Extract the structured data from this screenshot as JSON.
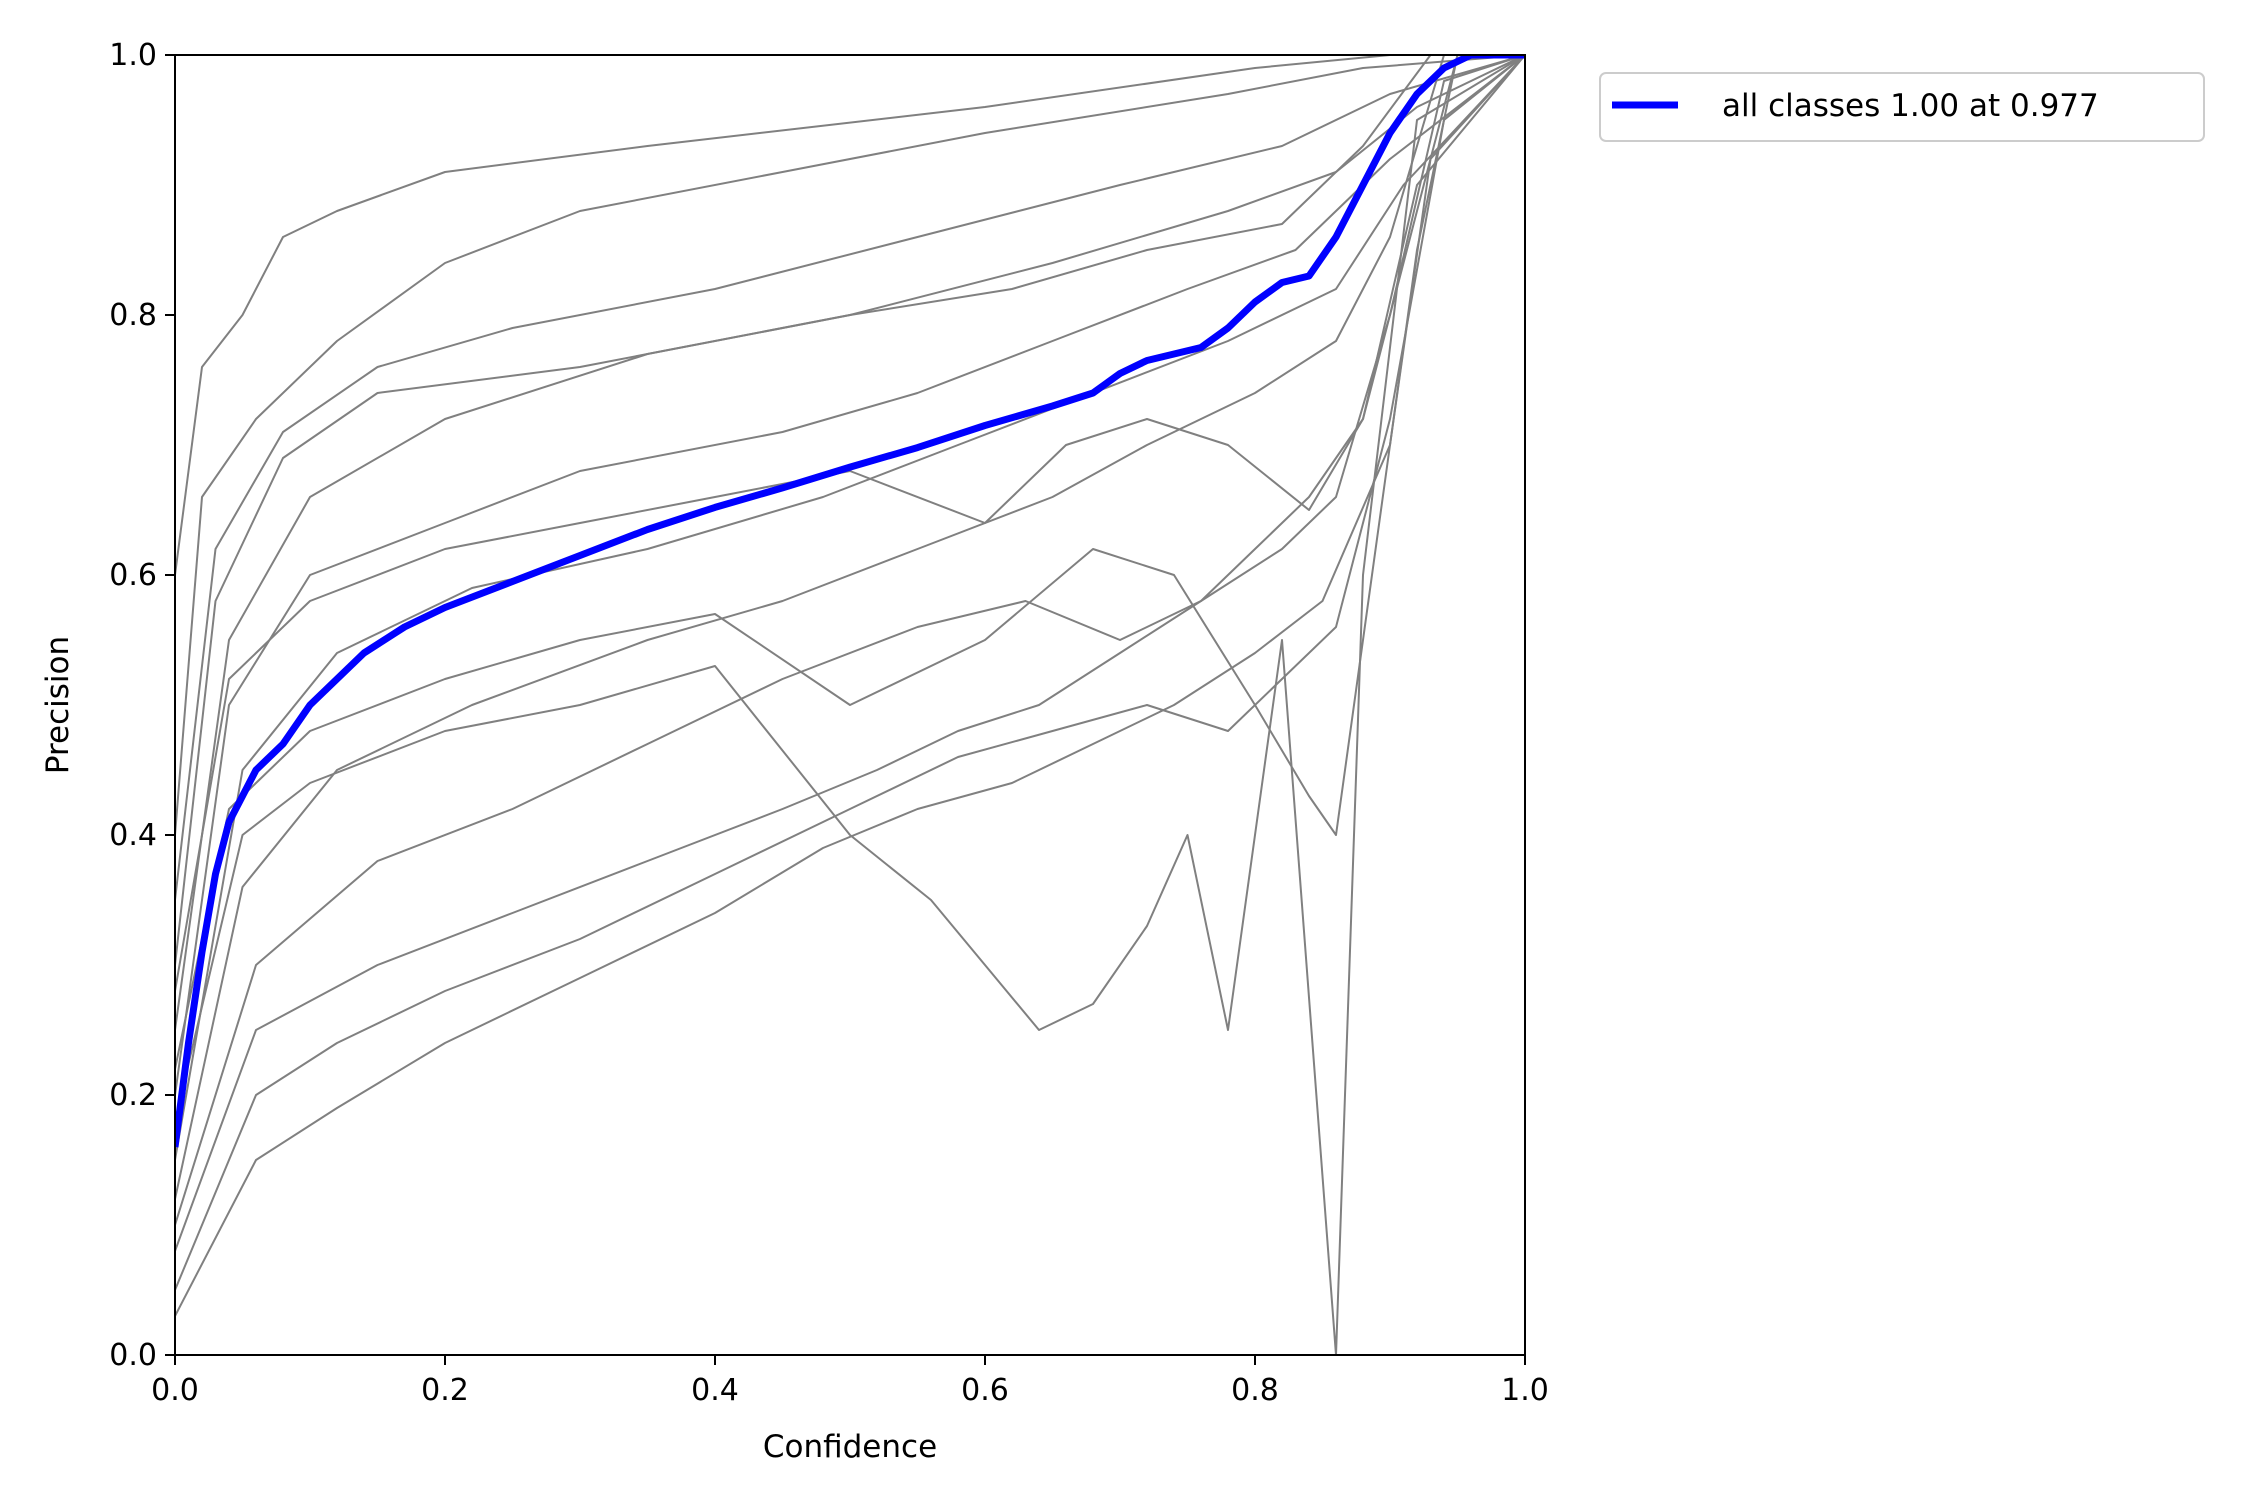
{
  "chart_data": {
    "type": "line",
    "title": "",
    "xlabel": "Confidence",
    "ylabel": "Precision",
    "xlim": [
      0.0,
      1.0
    ],
    "ylim": [
      0.0,
      1.0
    ],
    "xticks": [
      "0.0",
      "0.2",
      "0.4",
      "0.6",
      "0.8",
      "1.0"
    ],
    "yticks": [
      "0.0",
      "0.2",
      "0.4",
      "0.6",
      "0.8",
      "1.0"
    ],
    "grid": false,
    "legend_position": "outside-top-right",
    "colors": {
      "class_curves": "#808080",
      "all_classes": "#0000ff"
    },
    "series": [
      {
        "name": "all classes 1.00 at 0.977",
        "highlight": true,
        "points": [
          [
            0.0,
            0.16
          ],
          [
            0.01,
            0.24
          ],
          [
            0.02,
            0.31
          ],
          [
            0.03,
            0.37
          ],
          [
            0.04,
            0.41
          ],
          [
            0.05,
            0.43
          ],
          [
            0.06,
            0.45
          ],
          [
            0.08,
            0.47
          ],
          [
            0.1,
            0.5
          ],
          [
            0.12,
            0.52
          ],
          [
            0.14,
            0.54
          ],
          [
            0.17,
            0.56
          ],
          [
            0.2,
            0.575
          ],
          [
            0.25,
            0.595
          ],
          [
            0.3,
            0.615
          ],
          [
            0.35,
            0.635
          ],
          [
            0.4,
            0.652
          ],
          [
            0.45,
            0.667
          ],
          [
            0.5,
            0.683
          ],
          [
            0.55,
            0.698
          ],
          [
            0.6,
            0.715
          ],
          [
            0.65,
            0.73
          ],
          [
            0.68,
            0.74
          ],
          [
            0.7,
            0.755
          ],
          [
            0.72,
            0.765
          ],
          [
            0.74,
            0.77
          ],
          [
            0.76,
            0.775
          ],
          [
            0.78,
            0.79
          ],
          [
            0.8,
            0.81
          ],
          [
            0.82,
            0.825
          ],
          [
            0.84,
            0.83
          ],
          [
            0.86,
            0.86
          ],
          [
            0.88,
            0.9
          ],
          [
            0.9,
            0.94
          ],
          [
            0.92,
            0.97
          ],
          [
            0.94,
            0.99
          ],
          [
            0.96,
            1.0
          ],
          [
            1.0,
            1.0
          ]
        ]
      },
      {
        "highlight": false,
        "points": [
          [
            0.0,
            0.6
          ],
          [
            0.02,
            0.76
          ],
          [
            0.05,
            0.8
          ],
          [
            0.08,
            0.86
          ],
          [
            0.12,
            0.88
          ],
          [
            0.2,
            0.91
          ],
          [
            0.35,
            0.93
          ],
          [
            0.6,
            0.96
          ],
          [
            0.8,
            0.99
          ],
          [
            0.9,
            1.0
          ],
          [
            1.0,
            1.0
          ]
        ]
      },
      {
        "highlight": false,
        "points": [
          [
            0.0,
            0.4
          ],
          [
            0.02,
            0.66
          ],
          [
            0.06,
            0.72
          ],
          [
            0.12,
            0.78
          ],
          [
            0.2,
            0.84
          ],
          [
            0.3,
            0.88
          ],
          [
            0.45,
            0.91
          ],
          [
            0.6,
            0.94
          ],
          [
            0.78,
            0.97
          ],
          [
            0.88,
            0.99
          ],
          [
            1.0,
            1.0
          ]
        ]
      },
      {
        "highlight": false,
        "points": [
          [
            0.0,
            0.35
          ],
          [
            0.03,
            0.62
          ],
          [
            0.08,
            0.71
          ],
          [
            0.15,
            0.76
          ],
          [
            0.25,
            0.79
          ],
          [
            0.4,
            0.82
          ],
          [
            0.55,
            0.86
          ],
          [
            0.7,
            0.9
          ],
          [
            0.82,
            0.93
          ],
          [
            0.9,
            0.97
          ],
          [
            1.0,
            1.0
          ]
        ]
      },
      {
        "highlight": false,
        "points": [
          [
            0.0,
            0.3
          ],
          [
            0.03,
            0.58
          ],
          [
            0.08,
            0.69
          ],
          [
            0.15,
            0.74
          ],
          [
            0.3,
            0.76
          ],
          [
            0.5,
            0.8
          ],
          [
            0.65,
            0.84
          ],
          [
            0.78,
            0.88
          ],
          [
            0.86,
            0.91
          ],
          [
            0.92,
            0.96
          ],
          [
            1.0,
            1.0
          ]
        ]
      },
      {
        "highlight": false,
        "points": [
          [
            0.0,
            0.25
          ],
          [
            0.04,
            0.55
          ],
          [
            0.1,
            0.66
          ],
          [
            0.2,
            0.72
          ],
          [
            0.35,
            0.77
          ],
          [
            0.5,
            0.8
          ],
          [
            0.62,
            0.82
          ],
          [
            0.72,
            0.85
          ],
          [
            0.82,
            0.87
          ],
          [
            0.88,
            0.93
          ],
          [
            0.93,
            1.0
          ],
          [
            1.0,
            1.0
          ]
        ]
      },
      {
        "highlight": false,
        "points": [
          [
            0.0,
            0.2
          ],
          [
            0.04,
            0.5
          ],
          [
            0.1,
            0.6
          ],
          [
            0.2,
            0.64
          ],
          [
            0.3,
            0.68
          ],
          [
            0.45,
            0.71
          ],
          [
            0.55,
            0.74
          ],
          [
            0.65,
            0.78
          ],
          [
            0.75,
            0.82
          ],
          [
            0.83,
            0.85
          ],
          [
            0.9,
            0.92
          ],
          [
            1.0,
            1.0
          ]
        ]
      },
      {
        "highlight": false,
        "points": [
          [
            0.0,
            0.15
          ],
          [
            0.05,
            0.45
          ],
          [
            0.12,
            0.54
          ],
          [
            0.22,
            0.59
          ],
          [
            0.35,
            0.62
          ],
          [
            0.48,
            0.66
          ],
          [
            0.58,
            0.7
          ],
          [
            0.68,
            0.74
          ],
          [
            0.78,
            0.78
          ],
          [
            0.86,
            0.82
          ],
          [
            0.91,
            0.9
          ],
          [
            1.0,
            1.0
          ]
        ]
      },
      {
        "highlight": false,
        "points": [
          [
            0.0,
            0.12
          ],
          [
            0.05,
            0.36
          ],
          [
            0.12,
            0.45
          ],
          [
            0.22,
            0.5
          ],
          [
            0.35,
            0.55
          ],
          [
            0.45,
            0.58
          ],
          [
            0.55,
            0.62
          ],
          [
            0.65,
            0.66
          ],
          [
            0.72,
            0.7
          ],
          [
            0.8,
            0.74
          ],
          [
            0.86,
            0.78
          ],
          [
            0.9,
            0.86
          ],
          [
            0.94,
            1.0
          ],
          [
            1.0,
            1.0
          ]
        ]
      },
      {
        "highlight": false,
        "points": [
          [
            0.0,
            0.1
          ],
          [
            0.06,
            0.3
          ],
          [
            0.15,
            0.38
          ],
          [
            0.25,
            0.42
          ],
          [
            0.35,
            0.47
          ],
          [
            0.45,
            0.52
          ],
          [
            0.55,
            0.56
          ],
          [
            0.63,
            0.58
          ],
          [
            0.7,
            0.55
          ],
          [
            0.76,
            0.58
          ],
          [
            0.8,
            0.62
          ],
          [
            0.84,
            0.66
          ],
          [
            0.88,
            0.72
          ],
          [
            0.92,
            0.88
          ],
          [
            0.95,
            1.0
          ],
          [
            1.0,
            1.0
          ]
        ]
      },
      {
        "highlight": false,
        "points": [
          [
            0.0,
            0.08
          ],
          [
            0.06,
            0.25
          ],
          [
            0.15,
            0.3
          ],
          [
            0.25,
            0.34
          ],
          [
            0.35,
            0.38
          ],
          [
            0.45,
            0.42
          ],
          [
            0.52,
            0.45
          ],
          [
            0.58,
            0.48
          ],
          [
            0.64,
            0.5
          ],
          [
            0.7,
            0.54
          ],
          [
            0.76,
            0.58
          ],
          [
            0.82,
            0.62
          ],
          [
            0.86,
            0.66
          ],
          [
            0.9,
            0.8
          ],
          [
            0.94,
            0.98
          ],
          [
            1.0,
            1.0
          ]
        ]
      },
      {
        "highlight": false,
        "points": [
          [
            0.0,
            0.05
          ],
          [
            0.06,
            0.2
          ],
          [
            0.12,
            0.24
          ],
          [
            0.2,
            0.28
          ],
          [
            0.3,
            0.32
          ],
          [
            0.4,
            0.37
          ],
          [
            0.5,
            0.42
          ],
          [
            0.58,
            0.46
          ],
          [
            0.65,
            0.48
          ],
          [
            0.72,
            0.5
          ],
          [
            0.78,
            0.48
          ],
          [
            0.82,
            0.52
          ],
          [
            0.86,
            0.56
          ],
          [
            0.9,
            0.72
          ],
          [
            0.94,
            0.95
          ],
          [
            1.0,
            1.0
          ]
        ]
      },
      {
        "highlight": false,
        "points": [
          [
            0.0,
            0.03
          ],
          [
            0.06,
            0.15
          ],
          [
            0.12,
            0.19
          ],
          [
            0.2,
            0.24
          ],
          [
            0.3,
            0.29
          ],
          [
            0.4,
            0.34
          ],
          [
            0.48,
            0.39
          ],
          [
            0.55,
            0.42
          ],
          [
            0.62,
            0.44
          ],
          [
            0.68,
            0.47
          ],
          [
            0.74,
            0.5
          ],
          [
            0.8,
            0.54
          ],
          [
            0.85,
            0.58
          ],
          [
            0.9,
            0.7
          ],
          [
            0.93,
            0.92
          ],
          [
            1.0,
            1.0
          ]
        ]
      },
      {
        "highlight": false,
        "points": [
          [
            0.0,
            0.18
          ],
          [
            0.05,
            0.4
          ],
          [
            0.1,
            0.44
          ],
          [
            0.2,
            0.48
          ],
          [
            0.3,
            0.5
          ],
          [
            0.4,
            0.53
          ],
          [
            0.5,
            0.4
          ],
          [
            0.56,
            0.35
          ],
          [
            0.6,
            0.3
          ],
          [
            0.64,
            0.25
          ],
          [
            0.68,
            0.27
          ],
          [
            0.72,
            0.33
          ],
          [
            0.75,
            0.4
          ],
          [
            0.78,
            0.25
          ],
          [
            0.82,
            0.55
          ],
          [
            0.86,
            0.0
          ],
          [
            0.88,
            0.6
          ],
          [
            0.92,
            0.95
          ],
          [
            1.0,
            1.0
          ]
        ]
      },
      {
        "highlight": false,
        "points": [
          [
            0.0,
            0.22
          ],
          [
            0.04,
            0.42
          ],
          [
            0.1,
            0.48
          ],
          [
            0.2,
            0.52
          ],
          [
            0.3,
            0.55
          ],
          [
            0.4,
            0.57
          ],
          [
            0.5,
            0.5
          ],
          [
            0.6,
            0.55
          ],
          [
            0.68,
            0.62
          ],
          [
            0.74,
            0.6
          ],
          [
            0.8,
            0.5
          ],
          [
            0.84,
            0.43
          ],
          [
            0.86,
            0.4
          ],
          [
            0.9,
            0.7
          ],
          [
            0.92,
            0.85
          ],
          [
            0.95,
            1.0
          ],
          [
            1.0,
            1.0
          ]
        ]
      },
      {
        "highlight": false,
        "points": [
          [
            0.0,
            0.28
          ],
          [
            0.04,
            0.52
          ],
          [
            0.1,
            0.58
          ],
          [
            0.2,
            0.62
          ],
          [
            0.3,
            0.64
          ],
          [
            0.4,
            0.66
          ],
          [
            0.5,
            0.68
          ],
          [
            0.6,
            0.64
          ],
          [
            0.66,
            0.7
          ],
          [
            0.72,
            0.72
          ],
          [
            0.78,
            0.7
          ],
          [
            0.84,
            0.65
          ],
          [
            0.88,
            0.72
          ],
          [
            0.92,
            0.9
          ],
          [
            1.0,
            1.0
          ]
        ]
      }
    ]
  }
}
